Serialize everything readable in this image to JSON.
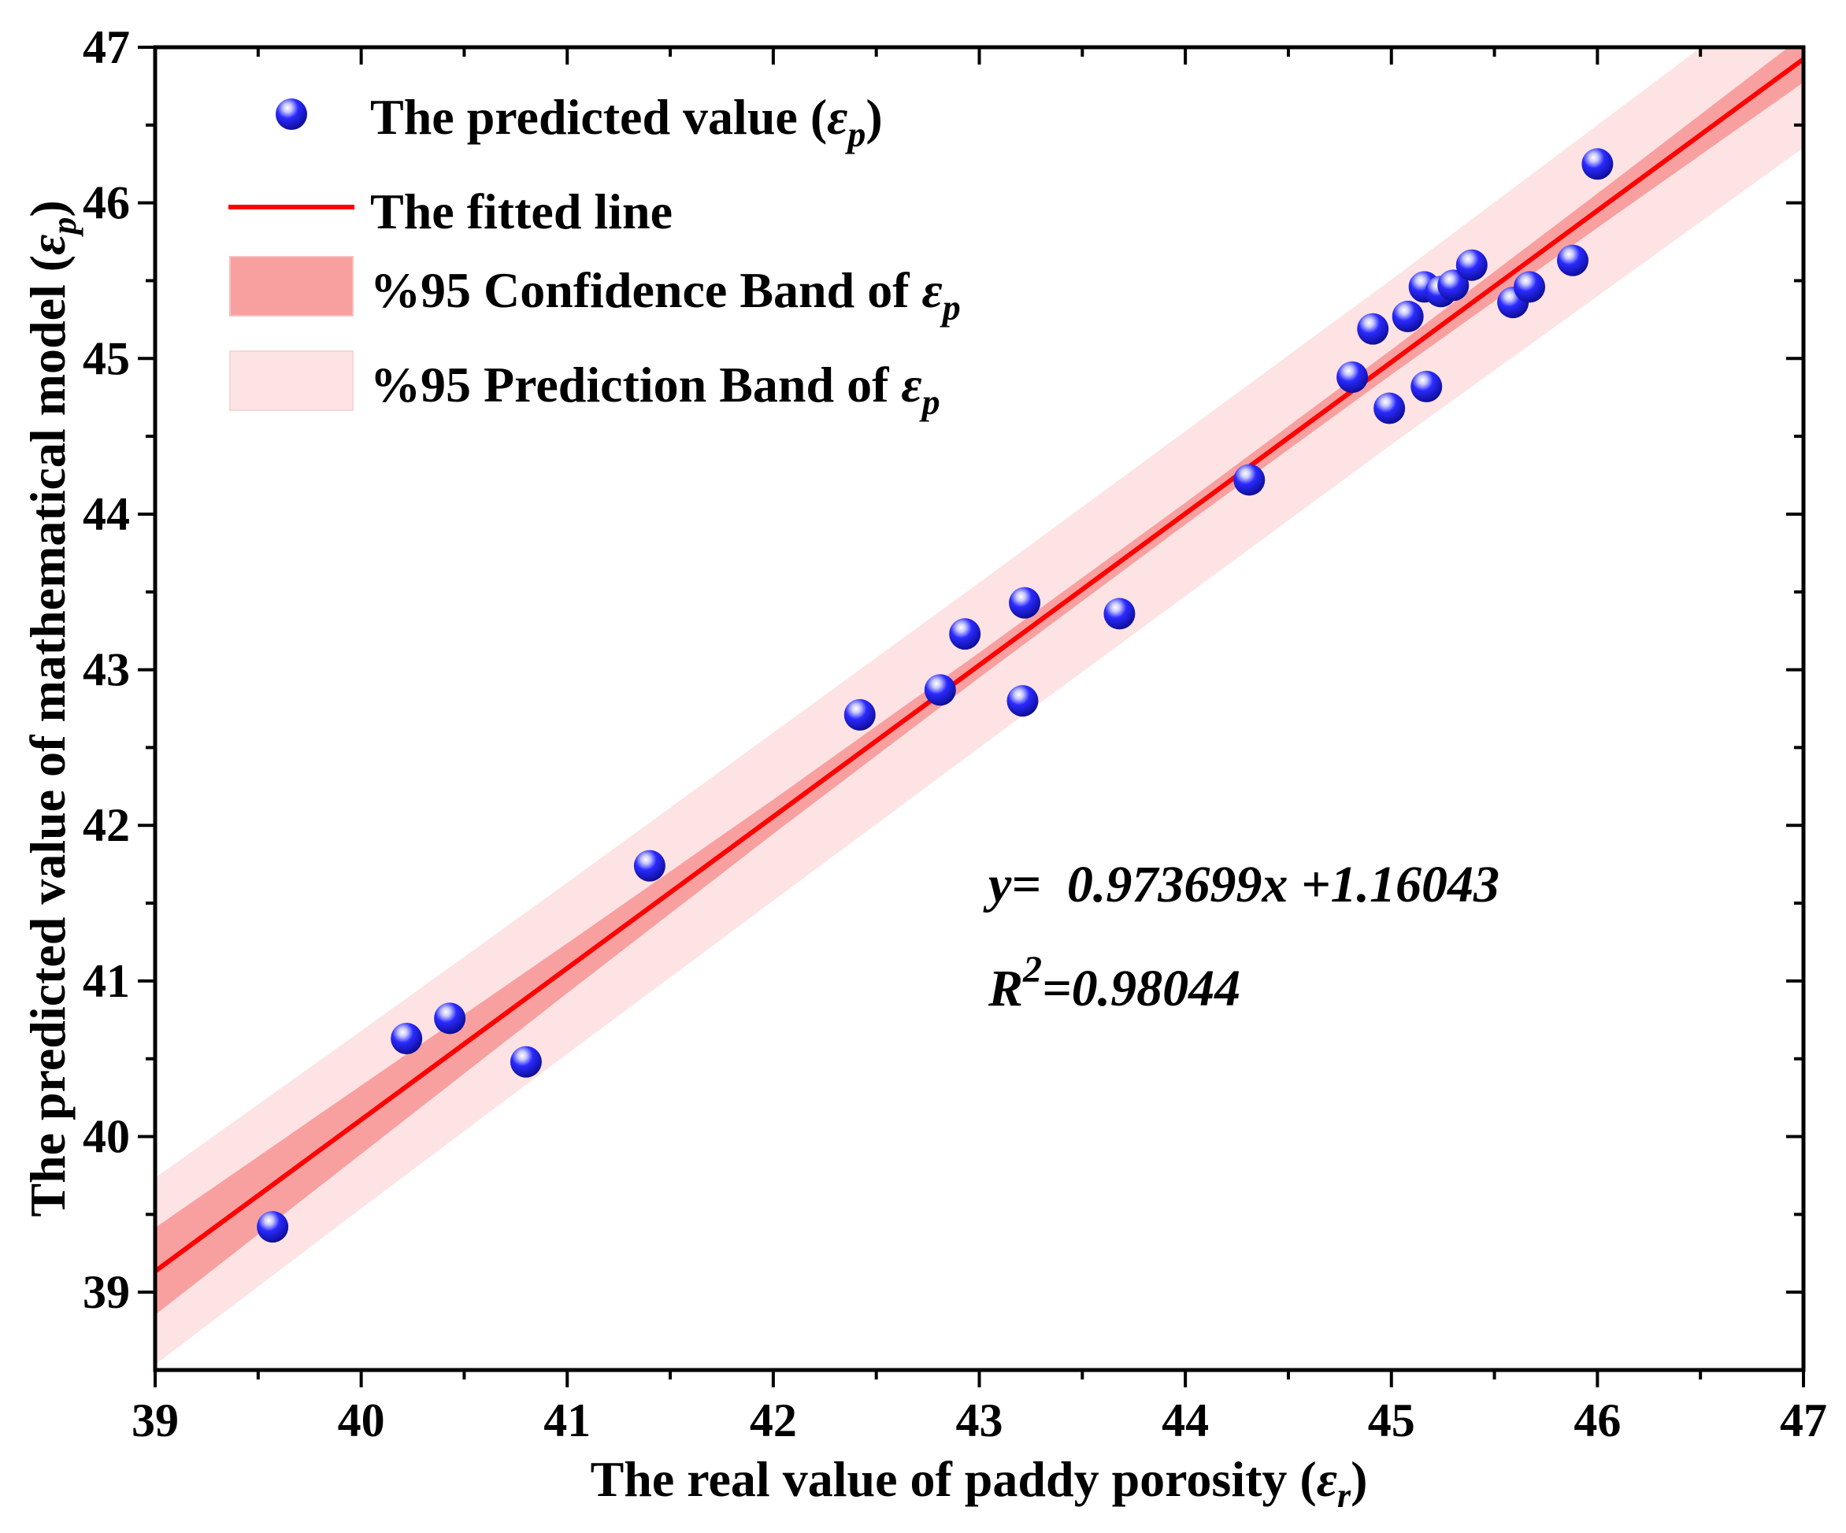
{
  "chart_data": {
    "type": "scatter",
    "title": "",
    "xlabel": "The real value of paddy porosity (",
    "xlabel_symbol": "ε",
    "xlabel_sub": "r",
    "xlabel_end": ")",
    "ylabel": "The predicted value of mathematical model (",
    "ylabel_symbol": "ε",
    "ylabel_sub": "p",
    "ylabel_end": ")",
    "xlim": [
      39,
      47
    ],
    "ylim": [
      38.5,
      47
    ],
    "xticks": [
      39,
      40,
      41,
      42,
      43,
      44,
      45,
      46,
      47
    ],
    "yticks": [
      39,
      40,
      41,
      42,
      43,
      44,
      45,
      46,
      47
    ],
    "colors": {
      "points": "#1a1aff",
      "fit_line": "#ff0000",
      "confidence_band": "#f8a0a0",
      "prediction_band": "#fde3e3"
    },
    "series": [
      {
        "name": "The predicted value (",
        "name_symbol": "ε",
        "name_sub": "p",
        "name_end": ")",
        "kind": "scatter",
        "points": [
          {
            "x": 39.57,
            "y": 39.42
          },
          {
            "x": 40.22,
            "y": 40.63
          },
          {
            "x": 40.43,
            "y": 40.76
          },
          {
            "x": 40.8,
            "y": 40.48
          },
          {
            "x": 41.4,
            "y": 41.74
          },
          {
            "x": 42.42,
            "y": 42.71
          },
          {
            "x": 42.81,
            "y": 42.87
          },
          {
            "x": 42.93,
            "y": 43.23
          },
          {
            "x": 43.21,
            "y": 42.8
          },
          {
            "x": 43.22,
            "y": 43.43
          },
          {
            "x": 43.68,
            "y": 43.36
          },
          {
            "x": 44.31,
            "y": 44.22
          },
          {
            "x": 44.81,
            "y": 44.88
          },
          {
            "x": 44.91,
            "y": 45.19
          },
          {
            "x": 44.99,
            "y": 44.68
          },
          {
            "x": 45.08,
            "y": 45.27
          },
          {
            "x": 45.16,
            "y": 45.46
          },
          {
            "x": 45.17,
            "y": 44.82
          },
          {
            "x": 45.24,
            "y": 45.43
          },
          {
            "x": 45.3,
            "y": 45.47
          },
          {
            "x": 45.39,
            "y": 45.6
          },
          {
            "x": 45.59,
            "y": 45.36
          },
          {
            "x": 45.67,
            "y": 45.46
          },
          {
            "x": 45.88,
            "y": 45.63
          },
          {
            "x": 46.0,
            "y": 46.25
          }
        ]
      },
      {
        "name": "The fitted line",
        "kind": "line",
        "slope": 0.973699,
        "intercept": 1.16043
      },
      {
        "name": "%95 Confidence Band of ",
        "name_symbol": "ε",
        "name_sub": "p",
        "kind": "band",
        "x": [
          39,
          40,
          41,
          42,
          43,
          44,
          45,
          46,
          47
        ],
        "half_width": [
          0.28,
          0.22,
          0.16,
          0.11,
          0.08,
          0.07,
          0.08,
          0.11,
          0.15
        ]
      },
      {
        "name": "%95 Prediction Band of ",
        "name_symbol": "ε",
        "name_sub": "p",
        "kind": "band",
        "x": [
          39,
          40,
          41,
          42,
          43,
          44,
          45,
          46,
          47
        ],
        "half_width": [
          0.6,
          0.57,
          0.55,
          0.54,
          0.53,
          0.53,
          0.53,
          0.55,
          0.57
        ]
      }
    ],
    "legend_position": "top-left",
    "annotations": {
      "equation_lhs": "y",
      "equation_rhs": "=  0.973699x +1.16043",
      "r2_label": "R",
      "r2_exp": "2",
      "r2_value": "=0.98044"
    }
  }
}
